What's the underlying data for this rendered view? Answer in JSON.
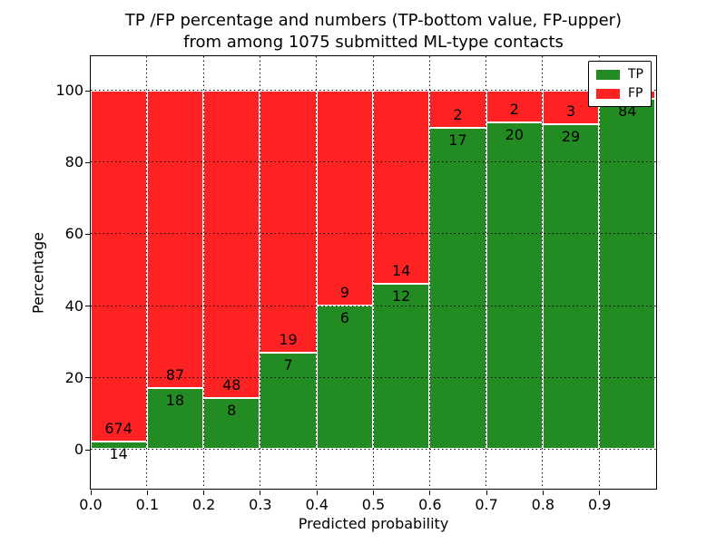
{
  "title": {
    "line1": "TP /FP percentage and numbers (TP-bottom value, FP-upper)",
    "line2": "from among 1075 submitted ML-type contacts"
  },
  "axes": {
    "ylabel": "Percentage",
    "xlabel": "Predicted probability",
    "yticks": [
      "0",
      "20",
      "40",
      "60",
      "80",
      "100"
    ],
    "xticks": [
      "0.0",
      "0.1",
      "0.2",
      "0.3",
      "0.4",
      "0.5",
      "0.6",
      "0.7",
      "0.8",
      "0.9"
    ]
  },
  "legend": {
    "items": [
      {
        "label": "TP",
        "color": "#228b22"
      },
      {
        "label": "FP",
        "color": "#ff2222"
      }
    ]
  },
  "chart_data": {
    "type": "bar",
    "stacked": true,
    "normalized_to_percent": true,
    "title": "TP /FP percentage and numbers (TP-bottom value, FP-upper) from among 1075 submitted ML-type contacts",
    "xlabel": "Predicted probability",
    "ylabel": "Percentage",
    "total_contacts": 1075,
    "xlim": [
      0.0,
      1.0
    ],
    "ytick_range": [
      0,
      100
    ],
    "grid": {
      "style": "dotted",
      "x": true,
      "y": true
    },
    "legend_position": "upper right",
    "bin_edges": [
      0.0,
      0.1,
      0.2,
      0.3,
      0.4,
      0.5,
      0.6,
      0.7,
      0.8,
      0.9,
      1.0
    ],
    "categories": [
      "0.0-0.1",
      "0.1-0.2",
      "0.2-0.3",
      "0.3-0.4",
      "0.4-0.5",
      "0.5-0.6",
      "0.6-0.7",
      "0.7-0.8",
      "0.8-0.9",
      "0.9-1.0"
    ],
    "series": [
      {
        "name": "TP",
        "color": "#228b22",
        "counts": [
          14,
          18,
          8,
          7,
          6,
          12,
          17,
          20,
          29,
          84
        ],
        "pct": [
          2.03,
          17.14,
          14.29,
          26.92,
          40.0,
          46.15,
          89.47,
          90.91,
          90.63,
          97.67
        ]
      },
      {
        "name": "FP",
        "color": "#ff2222",
        "counts": [
          674,
          87,
          48,
          19,
          9,
          14,
          2,
          2,
          3,
          null
        ],
        "pct": [
          97.97,
          82.86,
          85.71,
          73.08,
          60.0,
          53.85,
          10.53,
          9.09,
          9.37,
          2.33
        ]
      }
    ]
  }
}
